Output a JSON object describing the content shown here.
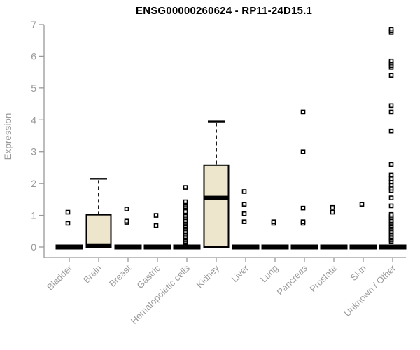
{
  "chart_data": {
    "type": "boxplot",
    "title": "ENSG00000260624 - RP11-24D15.1",
    "ylabel": "Expression",
    "xlabel": "",
    "ylim": [
      0,
      7
    ],
    "yticks": [
      0,
      1,
      2,
      3,
      4,
      5,
      6,
      7
    ],
    "grid": false,
    "legend": "none",
    "categories": [
      "Bladder",
      "Brain",
      "Breast",
      "Gastric",
      "Hematopoietic cells",
      "Kidney",
      "Liver",
      "Lung",
      "Pancreas",
      "Prostate",
      "Skin",
      "Unknown / Other"
    ],
    "series": [
      {
        "category": "Bladder",
        "q1": 0,
        "median": 0,
        "q3": 0,
        "whisker_low": 0,
        "whisker_high": 0,
        "outliers": [
          0.75,
          1.1
        ]
      },
      {
        "category": "Brain",
        "q1": 0,
        "median": 0.05,
        "q3": 1.02,
        "whisker_low": 0,
        "whisker_high": 2.15,
        "outliers": []
      },
      {
        "category": "Breast",
        "q1": 0,
        "median": 0,
        "q3": 0,
        "whisker_low": 0,
        "whisker_high": 0,
        "outliers": [
          0.78,
          0.82,
          1.2
        ]
      },
      {
        "category": "Gastric",
        "q1": 0,
        "median": 0,
        "q3": 0,
        "whisker_low": 0,
        "whisker_high": 0,
        "outliers": [
          0.68,
          1.0
        ]
      },
      {
        "category": "Hematopoietic cells",
        "q1": 0,
        "median": 0,
        "q3": 0,
        "whisker_low": 0,
        "whisker_high": 0,
        "outliers": [
          0.13,
          0.18,
          0.23,
          0.28,
          0.33,
          0.38,
          0.43,
          0.48,
          0.53,
          0.58,
          0.63,
          0.68,
          0.73,
          0.78,
          0.83,
          0.88,
          0.93,
          0.98,
          1.03,
          1.08,
          1.12,
          1.28,
          1.33,
          1.38,
          1.43,
          1.88
        ]
      },
      {
        "category": "Kidney",
        "q1": 0,
        "median": 1.55,
        "q3": 2.58,
        "whisker_low": 0,
        "whisker_high": 3.95,
        "outliers": []
      },
      {
        "category": "Liver",
        "q1": 0,
        "median": 0,
        "q3": 0,
        "whisker_low": 0,
        "whisker_high": 0,
        "outliers": [
          0.8,
          1.05,
          1.35,
          1.75
        ]
      },
      {
        "category": "Lung",
        "q1": 0,
        "median": 0,
        "q3": 0,
        "whisker_low": 0,
        "whisker_high": 0,
        "outliers": [
          0.75,
          0.8
        ]
      },
      {
        "category": "Pancreas",
        "q1": 0,
        "median": 0,
        "q3": 0,
        "whisker_low": 0,
        "whisker_high": 0,
        "outliers": [
          0.75,
          0.8,
          1.23,
          3.0,
          4.25
        ]
      },
      {
        "category": "Prostate",
        "q1": 0,
        "median": 0,
        "q3": 0,
        "whisker_low": 0,
        "whisker_high": 0,
        "outliers": [
          1.1,
          1.25
        ]
      },
      {
        "category": "Skin",
        "q1": 0,
        "median": 0,
        "q3": 0,
        "whisker_low": 0,
        "whisker_high": 0,
        "outliers": [
          1.35
        ]
      },
      {
        "category": "Unknown / Other",
        "q1": 0,
        "median": 0,
        "q3": 0,
        "whisker_low": 0,
        "whisker_high": 0,
        "outliers": [
          0.18,
          0.23,
          0.28,
          0.33,
          0.38,
          0.43,
          0.48,
          0.53,
          0.58,
          0.63,
          0.68,
          0.73,
          0.78,
          0.83,
          0.88,
          0.93,
          0.98,
          1.03,
          1.3,
          1.55,
          1.78,
          1.85,
          1.95,
          2.05,
          2.15,
          2.27,
          2.6,
          3.65,
          4.25,
          4.45,
          5.4,
          5.65,
          5.7,
          5.75,
          5.8,
          5.85,
          6.75,
          6.8,
          6.85
        ]
      }
    ],
    "colors": {
      "box_fill": "#EDE6CD",
      "box_border": "#000000",
      "median": "#000000",
      "outlier_stroke": "#000000",
      "axis_text": "#9A9A9A",
      "axis_line": "#999999",
      "title_text": "#000000",
      "background": "#FFFFFF"
    }
  }
}
